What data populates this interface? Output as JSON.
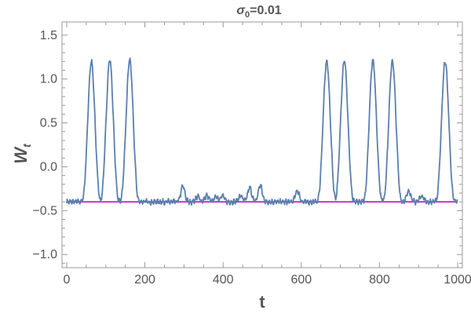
{
  "chart_data": {
    "type": "line",
    "title_main": "σ",
    "title_sub": "0",
    "title_rest": "=0.01",
    "xlabel": "t",
    "ylabel_main": "W",
    "ylabel_sub": "t",
    "xlim": [
      -12,
      1012
    ],
    "ylim": [
      -1.15,
      1.65
    ],
    "xticks": [
      0,
      200,
      400,
      600,
      800,
      1000
    ],
    "yticks": [
      -1.0,
      -0.5,
      0.0,
      0.5,
      1.0,
      1.5
    ],
    "xtick_labels": [
      "0",
      "200",
      "400",
      "600",
      "800",
      "1000"
    ],
    "ytick_labels": [
      "−1.0",
      "−0.5",
      "0.0",
      "0.5",
      "1.0",
      "1.5"
    ],
    "baseline": -0.4,
    "peaks": [
      {
        "t": 63,
        "peak": 1.2
      },
      {
        "t": 110,
        "peak": 1.22
      },
      {
        "t": 161,
        "peak": 1.22
      },
      {
        "t": 297,
        "peak": -0.22
      },
      {
        "t": 335,
        "peak": -0.34
      },
      {
        "t": 358,
        "peak": -0.33
      },
      {
        "t": 382,
        "peak": -0.34
      },
      {
        "t": 398,
        "peak": -0.33
      },
      {
        "t": 445,
        "peak": -0.33
      },
      {
        "t": 468,
        "peak": -0.24
      },
      {
        "t": 495,
        "peak": -0.21
      },
      {
        "t": 590,
        "peak": -0.27
      },
      {
        "t": 665,
        "peak": 1.2
      },
      {
        "t": 710,
        "peak": 1.22
      },
      {
        "t": 783,
        "peak": 1.22
      },
      {
        "t": 833,
        "peak": 1.21
      },
      {
        "t": 875,
        "peak": -0.27
      },
      {
        "t": 908,
        "peak": -0.33
      },
      {
        "t": 968,
        "peak": 1.2
      }
    ],
    "t_range": [
      0,
      1000
    ],
    "colors": {
      "series": "#5b7fad",
      "baseline": "#cc33cc",
      "frame": "#999999",
      "text": "#555555"
    }
  }
}
